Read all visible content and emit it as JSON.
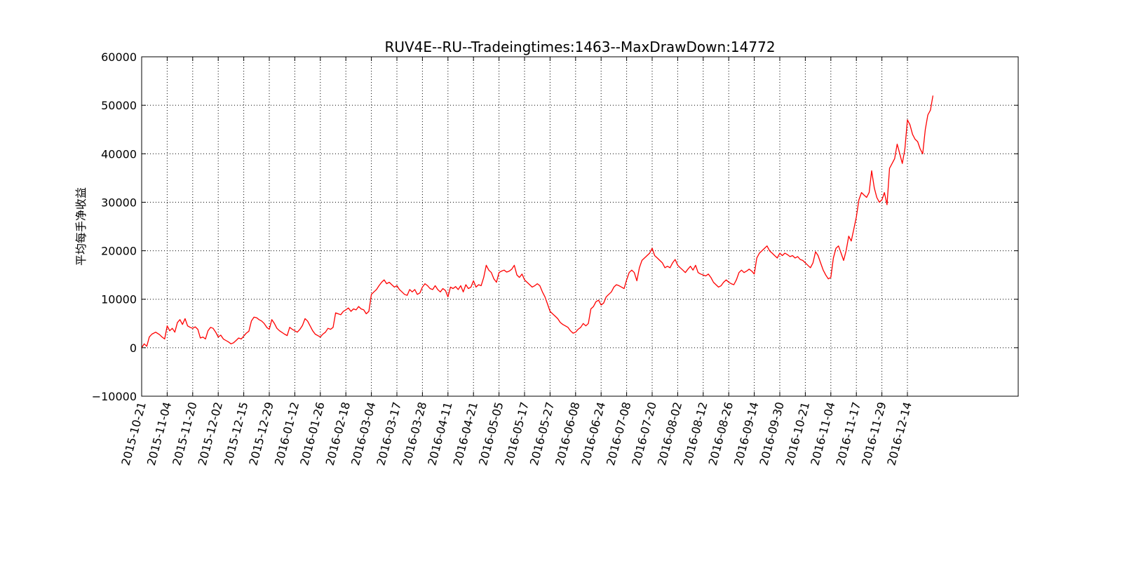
{
  "chart_data": {
    "type": "line",
    "title": "RUV4E--RU--Tradeingtimes:1463--MaxDrawDown:14772",
    "xlabel": "",
    "ylabel": "平均每手净收益",
    "ylim": [
      -10000,
      60000
    ],
    "xlim_slots": [
      0,
      34
    ],
    "grid": true,
    "line_color": "#ff0000",
    "y_ticks": [
      -10000,
      0,
      10000,
      20000,
      30000,
      40000,
      50000,
      60000
    ],
    "y_tick_labels": [
      "−10000",
      "0",
      "10000",
      "20000",
      "30000",
      "40000",
      "50000",
      "60000"
    ],
    "x_tick_labels": [
      "2015-10-21",
      "2015-11-04",
      "2015-11-20",
      "2015-12-02",
      "2015-12-15",
      "2015-12-29",
      "2016-01-12",
      "2016-01-26",
      "2016-02-18",
      "2016-03-04",
      "2016-03-17",
      "2016-03-28",
      "2016-04-11",
      "2016-04-21",
      "2016-05-05",
      "2016-05-17",
      "2016-05-27",
      "2016-06-08",
      "2016-06-24",
      "2016-07-08",
      "2016-07-20",
      "2016-08-02",
      "2016-08-12",
      "2016-08-26",
      "2016-09-14",
      "2016-09-30",
      "2016-10-21",
      "2016-11-04",
      "2016-11-17",
      "2016-11-29",
      "2016-12-14"
    ],
    "series": [
      {
        "name": "",
        "points": [
          [
            0.0,
            0
          ],
          [
            0.1,
            800
          ],
          [
            0.2,
            300
          ],
          [
            0.3,
            2200
          ],
          [
            0.4,
            2800
          ],
          [
            0.55,
            3200
          ],
          [
            0.7,
            2700
          ],
          [
            0.8,
            2200
          ],
          [
            0.9,
            1800
          ],
          [
            1.0,
            4500
          ],
          [
            1.1,
            3500
          ],
          [
            1.2,
            4000
          ],
          [
            1.3,
            3200
          ],
          [
            1.4,
            5200
          ],
          [
            1.5,
            5800
          ],
          [
            1.6,
            4800
          ],
          [
            1.7,
            6000
          ],
          [
            1.8,
            4500
          ],
          [
            1.9,
            4200
          ],
          [
            2.0,
            4000
          ],
          [
            2.1,
            4300
          ],
          [
            2.2,
            3800
          ],
          [
            2.3,
            2000
          ],
          [
            2.4,
            2200
          ],
          [
            2.5,
            1800
          ],
          [
            2.6,
            3500
          ],
          [
            2.7,
            4200
          ],
          [
            2.8,
            4000
          ],
          [
            2.9,
            3200
          ],
          [
            3.0,
            2200
          ],
          [
            3.1,
            2600
          ],
          [
            3.2,
            1800
          ],
          [
            3.3,
            1500
          ],
          [
            3.4,
            1200
          ],
          [
            3.5,
            800
          ],
          [
            3.6,
            1000
          ],
          [
            3.7,
            1500
          ],
          [
            3.8,
            2000
          ],
          [
            3.9,
            1800
          ],
          [
            4.0,
            2400
          ],
          [
            4.1,
            3000
          ],
          [
            4.2,
            3400
          ],
          [
            4.3,
            5500
          ],
          [
            4.4,
            6300
          ],
          [
            4.5,
            6200
          ],
          [
            4.6,
            5800
          ],
          [
            4.7,
            5500
          ],
          [
            4.8,
            5000
          ],
          [
            4.9,
            4200
          ],
          [
            5.0,
            3800
          ],
          [
            5.1,
            5800
          ],
          [
            5.2,
            5000
          ],
          [
            5.3,
            4000
          ],
          [
            5.4,
            3500
          ],
          [
            5.6,
            2800
          ],
          [
            5.7,
            2500
          ],
          [
            5.8,
            4200
          ],
          [
            5.9,
            3800
          ],
          [
            6.0,
            3500
          ],
          [
            6.1,
            3200
          ],
          [
            6.2,
            3800
          ],
          [
            6.3,
            4600
          ],
          [
            6.4,
            6000
          ],
          [
            6.5,
            5500
          ],
          [
            6.6,
            4500
          ],
          [
            6.7,
            3500
          ],
          [
            6.8,
            2800
          ],
          [
            6.9,
            2500
          ],
          [
            7.0,
            2200
          ],
          [
            7.1,
            2800
          ],
          [
            7.2,
            3200
          ],
          [
            7.3,
            4000
          ],
          [
            7.4,
            3800
          ],
          [
            7.5,
            4200
          ],
          [
            7.6,
            7200
          ],
          [
            7.7,
            7000
          ],
          [
            7.8,
            6800
          ],
          [
            7.9,
            7500
          ],
          [
            8.0,
            7800
          ],
          [
            8.1,
            8200
          ],
          [
            8.2,
            7500
          ],
          [
            8.3,
            8000
          ],
          [
            8.4,
            7800
          ],
          [
            8.5,
            8500
          ],
          [
            8.6,
            8000
          ],
          [
            8.7,
            7800
          ],
          [
            8.8,
            7000
          ],
          [
            8.9,
            7500
          ],
          [
            9.0,
            11000
          ],
          [
            9.1,
            11500
          ],
          [
            9.2,
            12000
          ],
          [
            9.3,
            12800
          ],
          [
            9.4,
            13500
          ],
          [
            9.5,
            14000
          ],
          [
            9.6,
            13200
          ],
          [
            9.7,
            13500
          ],
          [
            9.8,
            13000
          ],
          [
            9.9,
            12500
          ],
          [
            10.0,
            12800
          ],
          [
            10.1,
            12000
          ],
          [
            10.2,
            11500
          ],
          [
            10.3,
            11000
          ],
          [
            10.4,
            10800
          ],
          [
            10.5,
            12000
          ],
          [
            10.6,
            11500
          ],
          [
            10.7,
            12000
          ],
          [
            10.8,
            11000
          ],
          [
            10.9,
            11300
          ],
          [
            11.0,
            12500
          ],
          [
            11.1,
            13200
          ],
          [
            11.2,
            12800
          ],
          [
            11.3,
            12200
          ],
          [
            11.4,
            12000
          ],
          [
            11.5,
            12800
          ],
          [
            11.6,
            12000
          ],
          [
            11.7,
            11500
          ],
          [
            11.8,
            12200
          ],
          [
            11.9,
            11800
          ],
          [
            12.0,
            10500
          ],
          [
            12.1,
            12500
          ],
          [
            12.2,
            12200
          ],
          [
            12.3,
            12600
          ],
          [
            12.4,
            12000
          ],
          [
            12.5,
            12800
          ],
          [
            12.6,
            11500
          ],
          [
            12.7,
            13000
          ],
          [
            12.8,
            12200
          ],
          [
            12.9,
            12500
          ],
          [
            13.0,
            13800
          ],
          [
            13.1,
            12500
          ],
          [
            13.2,
            13000
          ],
          [
            13.3,
            12800
          ],
          [
            13.4,
            14500
          ],
          [
            13.5,
            17000
          ],
          [
            13.6,
            16000
          ],
          [
            13.7,
            15500
          ],
          [
            13.8,
            14200
          ],
          [
            13.9,
            13500
          ],
          [
            14.0,
            15500
          ],
          [
            14.1,
            15800
          ],
          [
            14.2,
            16000
          ],
          [
            14.3,
            15600
          ],
          [
            14.4,
            15800
          ],
          [
            14.5,
            16200
          ],
          [
            14.6,
            17000
          ],
          [
            14.7,
            15000
          ],
          [
            14.8,
            14500
          ],
          [
            14.9,
            15200
          ],
          [
            15.0,
            14000
          ],
          [
            15.1,
            13500
          ],
          [
            15.2,
            13000
          ],
          [
            15.3,
            12500
          ],
          [
            15.4,
            12800
          ],
          [
            15.5,
            13200
          ],
          [
            15.6,
            12800
          ],
          [
            15.7,
            11500
          ],
          [
            15.8,
            10500
          ],
          [
            15.9,
            9000
          ],
          [
            16.0,
            7500
          ],
          [
            16.1,
            7000
          ],
          [
            16.2,
            6500
          ],
          [
            16.3,
            6000
          ],
          [
            16.4,
            5200
          ],
          [
            16.5,
            4800
          ],
          [
            16.6,
            4500
          ],
          [
            16.7,
            4200
          ],
          [
            16.8,
            3500
          ],
          [
            16.9,
            3000
          ],
          [
            17.0,
            3200
          ],
          [
            17.1,
            3800
          ],
          [
            17.2,
            4200
          ],
          [
            17.3,
            5000
          ],
          [
            17.4,
            4500
          ],
          [
            17.5,
            5000
          ],
          [
            17.6,
            8000
          ],
          [
            17.7,
            8500
          ],
          [
            17.8,
            9500
          ],
          [
            17.9,
            9800
          ],
          [
            18.0,
            8800
          ],
          [
            18.1,
            9200
          ],
          [
            18.2,
            10500
          ],
          [
            18.3,
            11000
          ],
          [
            18.4,
            11500
          ],
          [
            18.5,
            12500
          ],
          [
            18.6,
            13000
          ],
          [
            18.7,
            12800
          ],
          [
            18.8,
            12500
          ],
          [
            18.9,
            12200
          ],
          [
            19.0,
            14000
          ],
          [
            19.1,
            15500
          ],
          [
            19.2,
            16000
          ],
          [
            19.3,
            15500
          ],
          [
            19.4,
            13800
          ],
          [
            19.5,
            16500
          ],
          [
            19.6,
            18000
          ],
          [
            19.7,
            18500
          ],
          [
            19.8,
            19000
          ],
          [
            19.9,
            19500
          ],
          [
            20.0,
            20500
          ],
          [
            20.1,
            19000
          ],
          [
            20.2,
            18500
          ],
          [
            20.3,
            18000
          ],
          [
            20.4,
            17500
          ],
          [
            20.5,
            16500
          ],
          [
            20.6,
            16800
          ],
          [
            20.7,
            16500
          ],
          [
            20.8,
            17500
          ],
          [
            20.9,
            18200
          ],
          [
            21.0,
            17000
          ],
          [
            21.1,
            16500
          ],
          [
            21.2,
            16000
          ],
          [
            21.3,
            15500
          ],
          [
            21.4,
            16200
          ],
          [
            21.5,
            16800
          ],
          [
            21.6,
            16000
          ],
          [
            21.7,
            17000
          ],
          [
            21.8,
            15500
          ],
          [
            21.9,
            15200
          ],
          [
            22.0,
            15000
          ],
          [
            22.1,
            14800
          ],
          [
            22.2,
            15200
          ],
          [
            22.3,
            14500
          ],
          [
            22.4,
            13500
          ],
          [
            22.5,
            13000
          ],
          [
            22.6,
            12500
          ],
          [
            22.7,
            12800
          ],
          [
            22.8,
            13500
          ],
          [
            22.9,
            14000
          ],
          [
            23.0,
            13500
          ],
          [
            23.1,
            13200
          ],
          [
            23.2,
            13000
          ],
          [
            23.3,
            14000
          ],
          [
            23.4,
            15500
          ],
          [
            23.5,
            16000
          ],
          [
            23.6,
            15500
          ],
          [
            23.7,
            15800
          ],
          [
            23.8,
            16200
          ],
          [
            23.9,
            15800
          ],
          [
            24.0,
            15200
          ],
          [
            24.1,
            18500
          ],
          [
            24.2,
            19500
          ],
          [
            24.3,
            20000
          ],
          [
            24.4,
            20500
          ],
          [
            24.5,
            21000
          ],
          [
            24.6,
            20000
          ],
          [
            24.7,
            19500
          ],
          [
            24.8,
            19000
          ],
          [
            24.9,
            18500
          ],
          [
            25.0,
            19500
          ],
          [
            25.1,
            19000
          ],
          [
            25.2,
            19500
          ],
          [
            25.3,
            19200
          ],
          [
            25.4,
            18800
          ],
          [
            25.5,
            19000
          ],
          [
            25.6,
            18500
          ],
          [
            25.7,
            18800
          ],
          [
            25.8,
            18200
          ],
          [
            25.9,
            18000
          ],
          [
            26.0,
            17500
          ],
          [
            26.1,
            17000
          ],
          [
            26.2,
            16500
          ],
          [
            26.3,
            17500
          ],
          [
            26.4,
            19800
          ],
          [
            26.5,
            19000
          ],
          [
            26.6,
            17500
          ],
          [
            26.7,
            16000
          ],
          [
            26.8,
            15000
          ],
          [
            26.9,
            14200
          ],
          [
            27.0,
            14500
          ],
          [
            27.1,
            18500
          ],
          [
            27.2,
            20500
          ],
          [
            27.3,
            21000
          ],
          [
            27.4,
            19500
          ],
          [
            27.5,
            18000
          ],
          [
            27.6,
            20000
          ],
          [
            27.7,
            23000
          ],
          [
            27.8,
            22000
          ],
          [
            27.9,
            24500
          ],
          [
            28.0,
            27000
          ],
          [
            28.1,
            30500
          ],
          [
            28.2,
            32000
          ],
          [
            28.3,
            31500
          ],
          [
            28.4,
            31000
          ],
          [
            28.5,
            32000
          ],
          [
            28.6,
            36500
          ],
          [
            28.7,
            33000
          ],
          [
            28.8,
            31000
          ],
          [
            28.9,
            30000
          ],
          [
            29.0,
            30500
          ],
          [
            29.1,
            32000
          ],
          [
            29.2,
            29500
          ],
          [
            29.3,
            37000
          ],
          [
            29.4,
            38000
          ],
          [
            29.5,
            39000
          ],
          [
            29.6,
            42000
          ],
          [
            29.7,
            40000
          ],
          [
            29.8,
            38000
          ],
          [
            29.9,
            41000
          ],
          [
            30.0,
            47000
          ],
          [
            30.1,
            46000
          ],
          [
            30.2,
            44000
          ],
          [
            30.3,
            43000
          ],
          [
            30.4,
            42500
          ],
          [
            30.5,
            41000
          ],
          [
            30.6,
            40000
          ],
          [
            30.7,
            45000
          ],
          [
            30.8,
            48000
          ],
          [
            30.9,
            49000
          ],
          [
            31.0,
            52000
          ]
        ]
      }
    ]
  }
}
